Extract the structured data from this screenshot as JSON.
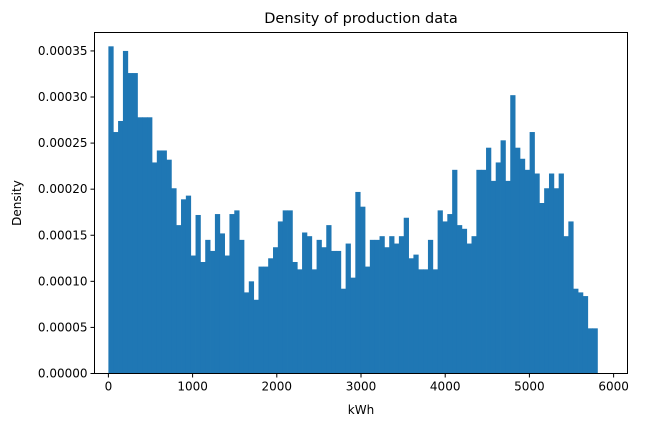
{
  "chart_data": {
    "type": "bar",
    "title": "Density of production data",
    "xlabel": "kWh",
    "ylabel": "Density",
    "xlim": [
      -165,
      6165
    ],
    "ylim": [
      0,
      0.00037
    ],
    "xticks": [
      0,
      1000,
      2000,
      3000,
      4000,
      5000,
      6000
    ],
    "xtick_labels": [
      "0",
      "1000",
      "2000",
      "3000",
      "4000",
      "5000",
      "6000"
    ],
    "yticks": [
      0,
      5e-05,
      0.0001,
      0.00015,
      0.0002,
      0.00025,
      0.0003,
      0.00035
    ],
    "ytick_labels": [
      "0.00000",
      "0.00005",
      "0.00010",
      "0.00015",
      "0.00020",
      "0.00025",
      "0.00030",
      "0.00035"
    ],
    "bar_color": "#1f77b4",
    "bin_start": 0,
    "bin_width": 57.5,
    "values": [
      0.000355,
      0.000262,
      0.000274,
      0.00035,
      0.000326,
      0.000326,
      0.000278,
      0.000278,
      0.000278,
      0.000229,
      0.000242,
      0.000242,
      0.000232,
      0.000201,
      0.000161,
      0.000189,
      0.000193,
      0.000128,
      0.000172,
      0.000121,
      0.000145,
      0.000133,
      0.000173,
      0.000152,
      0.000128,
      0.000173,
      0.000177,
      0.000145,
      8.8e-05,
      0.0001,
      8e-05,
      0.000116,
      0.000116,
      0.000125,
      0.000137,
      0.000165,
      0.000177,
      0.000177,
      0.000121,
      0.000113,
      0.000153,
      0.000149,
      0.000113,
      0.000145,
      0.000137,
      0.000161,
      0.000133,
      0.000133,
      9.2e-05,
      0.000141,
      0.000104,
      0.000197,
      0.000181,
      0.000116,
      0.000145,
      0.000145,
      0.000149,
      0.000137,
      0.000149,
      0.000141,
      0.000149,
      0.000169,
      0.000125,
      0.000129,
      0.000113,
      0.000113,
      0.000145,
      0.000113,
      0.000177,
      0.000165,
      0.000173,
      0.000221,
      0.000161,
      0.000157,
      0.000141,
      0.000149,
      0.000221,
      0.000221,
      0.000245,
      0.000209,
      0.000229,
      0.000253,
      0.000209,
      0.000302,
      0.000245,
      0.000233,
      0.000221,
      0.000262,
      0.000217,
      0.000185,
      0.000201,
      0.000217,
      0.000201,
      0.000217,
      0.000149,
      0.000165,
      9.2e-05,
      8.8e-05,
      8.4e-05,
      4.9e-05,
      4.9e-05
    ]
  }
}
